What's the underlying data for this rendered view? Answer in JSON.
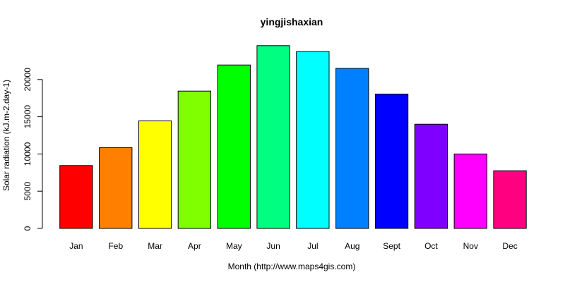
{
  "chart_data": {
    "type": "bar",
    "title": "yingjishaxian",
    "xlabel": "Month (http://www.maps4gis.com)",
    "ylabel": "Solar radiation (kJ.m-2.day-1)",
    "categories": [
      "Jan",
      "Feb",
      "Mar",
      "Apr",
      "May",
      "Jun",
      "Jul",
      "Aug",
      "Sept",
      "Oct",
      "Nov",
      "Dec"
    ],
    "values": [
      8450,
      10850,
      14450,
      18450,
      21950,
      24550,
      23750,
      21500,
      18050,
      14000,
      10000,
      7750
    ],
    "colors": [
      "#FF0000",
      "#FF8000",
      "#FFFF00",
      "#80FF00",
      "#00FF00",
      "#00FF80",
      "#00FFFF",
      "#0080FF",
      "#0000FF",
      "#8000FF",
      "#FF00FF",
      "#FF0080"
    ],
    "ylim": [
      0,
      25000
    ],
    "yticks": [
      0,
      5000,
      10000,
      15000,
      20000
    ],
    "grid": false,
    "legend": "none"
  }
}
